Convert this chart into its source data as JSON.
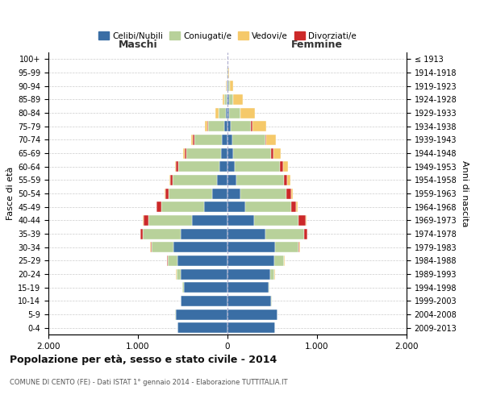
{
  "age_groups": [
    "0-4",
    "5-9",
    "10-14",
    "15-19",
    "20-24",
    "25-29",
    "30-34",
    "35-39",
    "40-44",
    "45-49",
    "50-54",
    "55-59",
    "60-64",
    "65-69",
    "70-74",
    "75-79",
    "80-84",
    "85-89",
    "90-94",
    "95-99",
    "100+"
  ],
  "birth_years": [
    "2009-2013",
    "2004-2008",
    "1999-2003",
    "1994-1998",
    "1989-1993",
    "1984-1988",
    "1979-1983",
    "1974-1978",
    "1969-1973",
    "1964-1968",
    "1959-1963",
    "1954-1958",
    "1949-1953",
    "1944-1948",
    "1939-1943",
    "1934-1938",
    "1929-1933",
    "1924-1928",
    "1919-1923",
    "1914-1918",
    "≤ 1913"
  ],
  "maschi": {
    "celibi": [
      560,
      580,
      520,
      490,
      520,
      560,
      600,
      520,
      400,
      260,
      170,
      120,
      90,
      70,
      60,
      40,
      20,
      10,
      5,
      3,
      2
    ],
    "coniugati": [
      2,
      2,
      5,
      15,
      50,
      110,
      250,
      430,
      480,
      480,
      490,
      490,
      460,
      390,
      310,
      180,
      80,
      30,
      8,
      2,
      0
    ],
    "vedovi": [
      0,
      0,
      0,
      0,
      1,
      1,
      2,
      2,
      2,
      3,
      5,
      5,
      10,
      15,
      20,
      30,
      30,
      15,
      5,
      1,
      0
    ],
    "divorziati": [
      0,
      0,
      0,
      0,
      2,
      5,
      10,
      20,
      60,
      50,
      35,
      30,
      25,
      20,
      15,
      5,
      2,
      0,
      0,
      0,
      0
    ]
  },
  "femmine": {
    "nubili": [
      530,
      560,
      490,
      460,
      480,
      520,
      530,
      420,
      300,
      200,
      140,
      100,
      80,
      60,
      50,
      35,
      20,
      15,
      8,
      3,
      2
    ],
    "coniugate": [
      2,
      2,
      5,
      10,
      45,
      110,
      260,
      440,
      490,
      510,
      520,
      530,
      510,
      430,
      370,
      230,
      120,
      50,
      15,
      3,
      0
    ],
    "vedove": [
      0,
      0,
      0,
      0,
      1,
      2,
      3,
      5,
      10,
      15,
      20,
      30,
      50,
      80,
      110,
      160,
      160,
      100,
      40,
      10,
      2
    ],
    "divorziate": [
      0,
      0,
      0,
      0,
      2,
      5,
      15,
      30,
      80,
      60,
      50,
      40,
      35,
      25,
      15,
      10,
      5,
      2,
      0,
      0,
      0
    ]
  },
  "colors": {
    "celibi_nubili": "#3a6ea5",
    "coniugati": "#b8d19a",
    "vedovi": "#f5c96a",
    "divorziati": "#cc2929"
  },
  "xlim": 2000,
  "title": "Popolazione per età, sesso e stato civile - 2014",
  "subtitle": "COMUNE DI CENTO (FE) - Dati ISTAT 1° gennaio 2014 - Elaborazione TUTTITALIA.IT",
  "ylabel_left": "Fasce di età",
  "ylabel_right": "Anni di nascita",
  "xlabel_maschi": "Maschi",
  "xlabel_femmine": "Femmine",
  "legend": [
    "Celibi/Nubili",
    "Coniugati/e",
    "Vedovi/e",
    "Divorziati/e"
  ],
  "background_color": "#ffffff",
  "grid_color": "#cccccc"
}
